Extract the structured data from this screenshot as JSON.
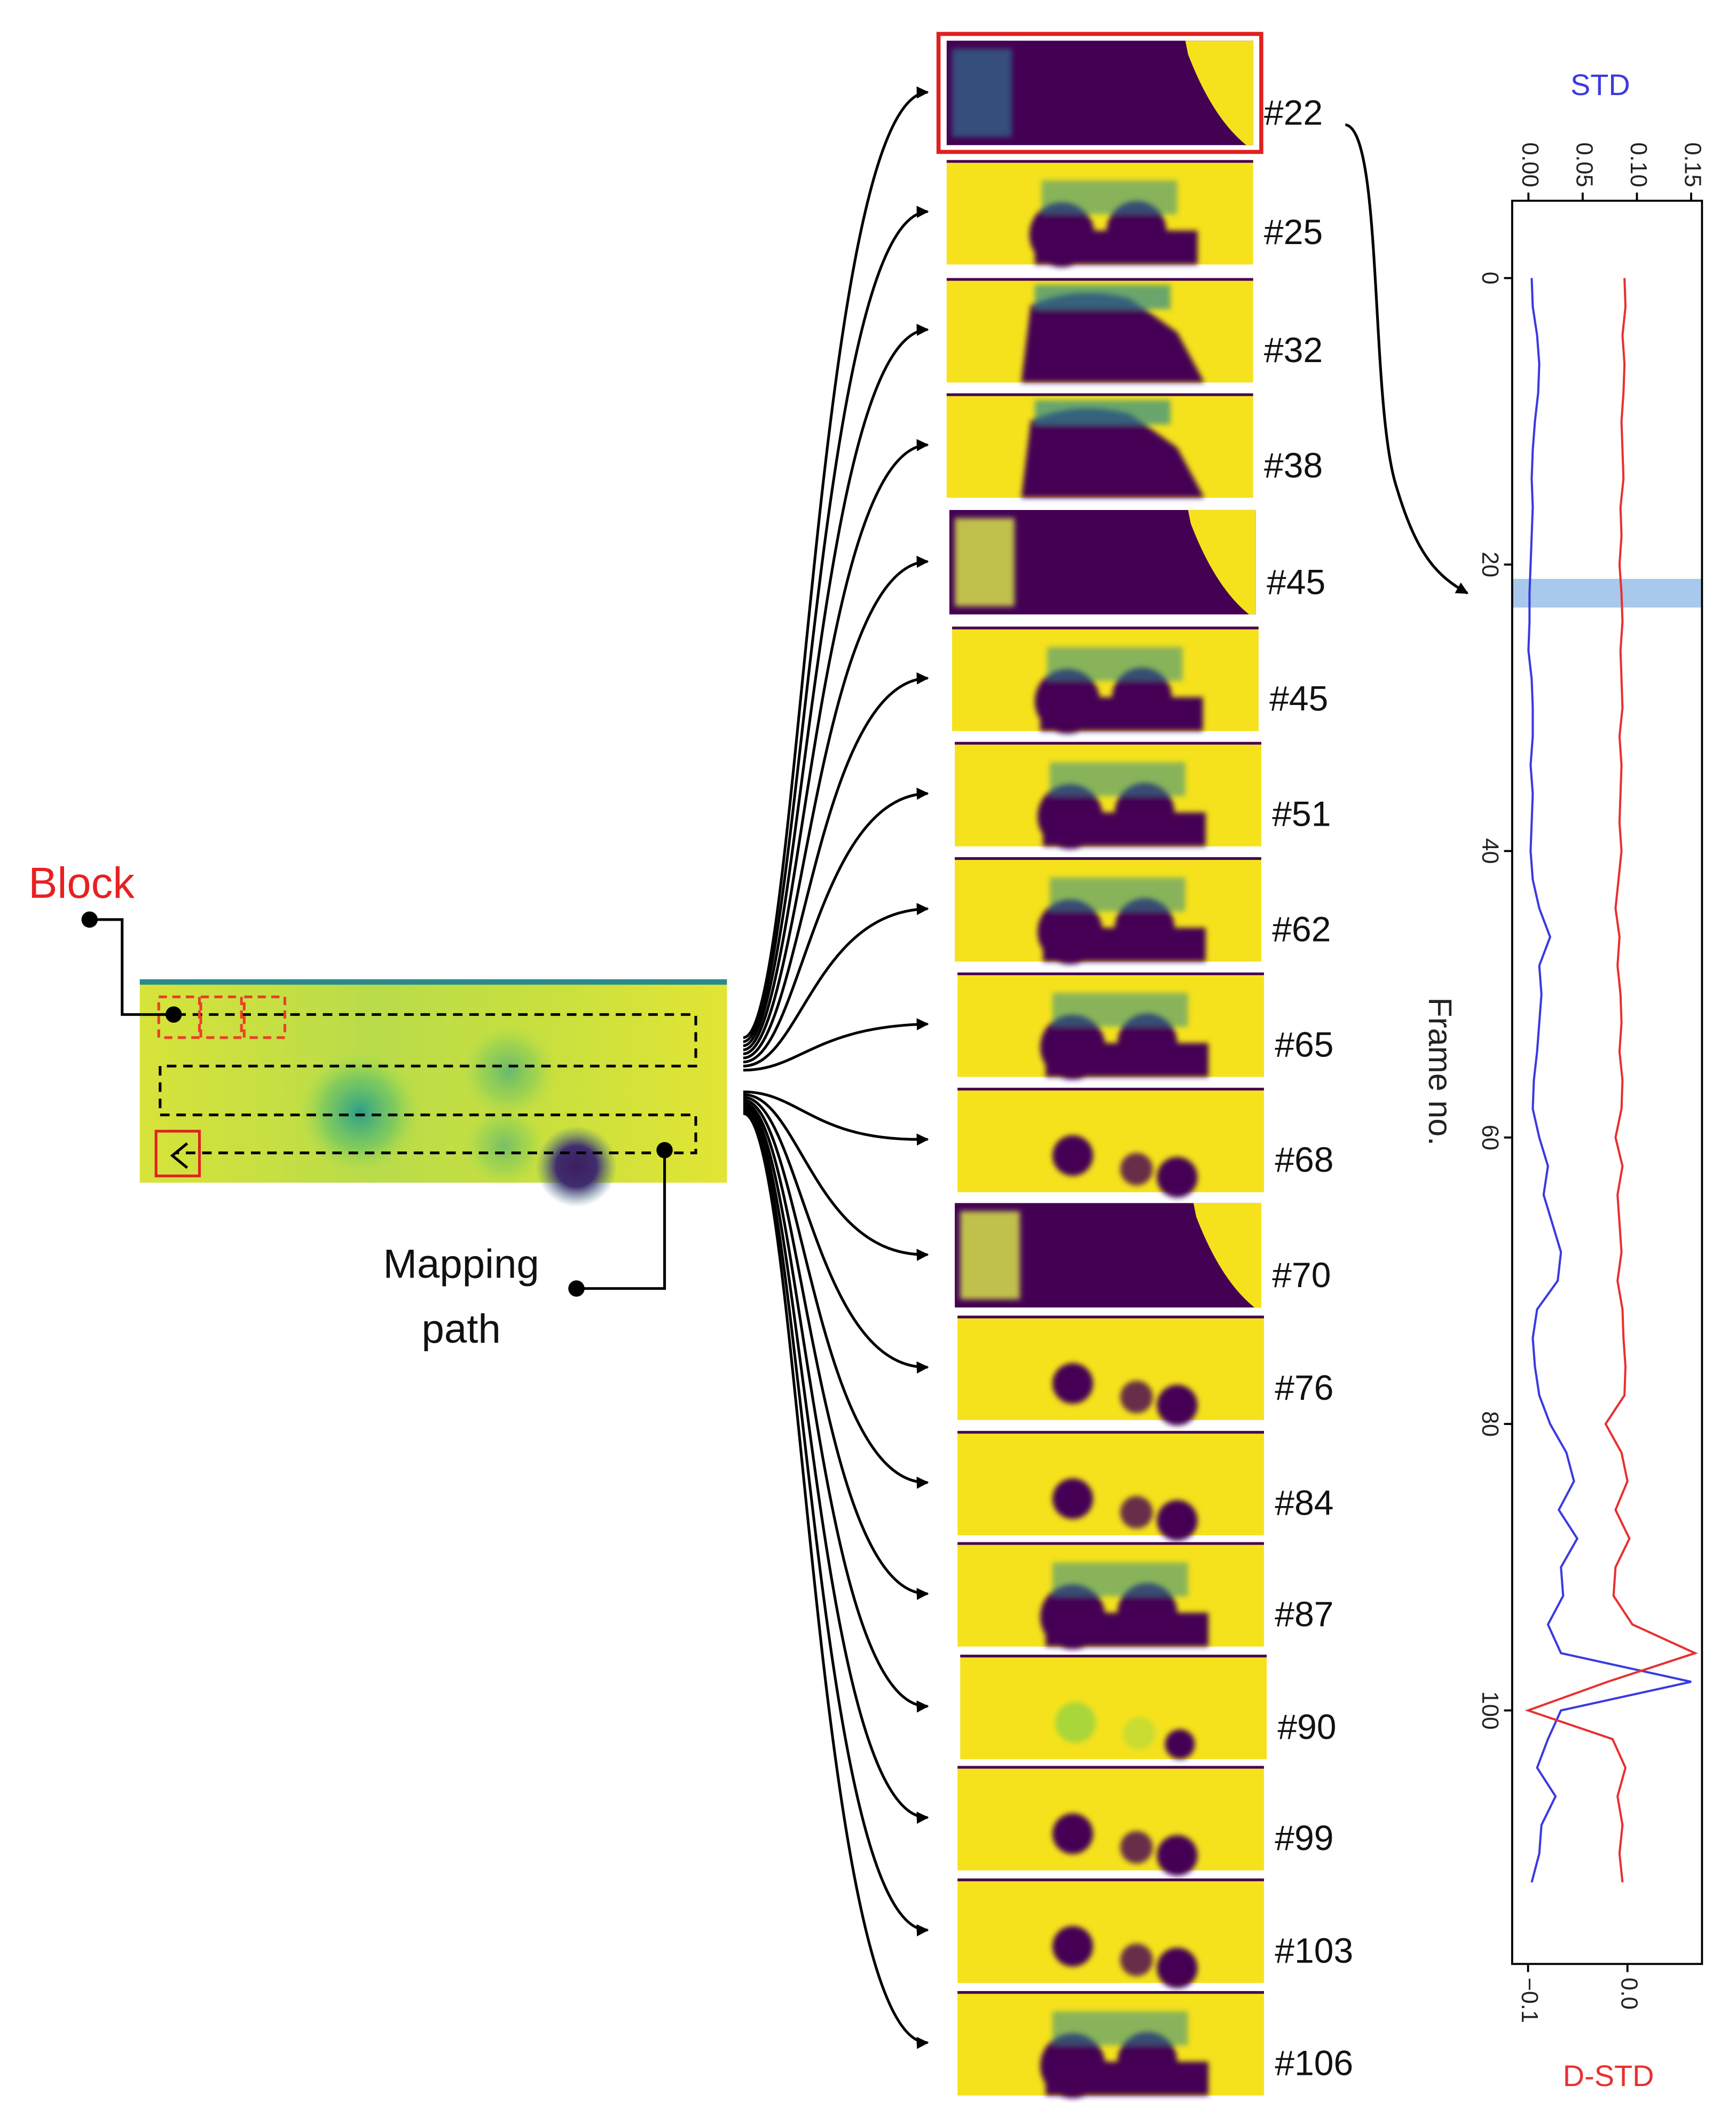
{
  "block_label": "Block",
  "mapping_label": [
    "Mapping",
    "path"
  ],
  "frames": [
    "#22",
    "#25",
    "#32",
    "#38",
    "#45",
    "#45",
    "#51",
    "#62",
    "#65",
    "#68",
    "#70",
    "#76",
    "#84",
    "#87",
    "#90",
    "#99",
    "#103",
    "#106"
  ],
  "chart_data": {
    "type": "line",
    "orientation": "vertical",
    "xlabel": "Frame no.",
    "ylabel": "STD",
    "y2label": "D-STD",
    "x": [
      0,
      2,
      4,
      6,
      8,
      10,
      12,
      14,
      16,
      18,
      20,
      22,
      24,
      26,
      28,
      30,
      32,
      34,
      36,
      38,
      40,
      42,
      44,
      46,
      48,
      50,
      52,
      54,
      56,
      58,
      60,
      62,
      64,
      66,
      68,
      70,
      72,
      74,
      76,
      78,
      80,
      82,
      84,
      86,
      88,
      90,
      92,
      94,
      96,
      98,
      100,
      102,
      104,
      106,
      108,
      110,
      112
    ],
    "xlim": [
      -5.4,
      117.7
    ],
    "xticks": [
      0,
      20,
      40,
      60,
      80,
      100
    ],
    "ylim": [
      -0.015,
      0.16
    ],
    "yticks": [
      {
        "value": 0,
        "label": "0.00"
      },
      {
        "value": 0.05,
        "label": "0.05"
      },
      {
        "value": 0.1,
        "label": "0.10"
      },
      {
        "value": 0.15,
        "label": "0.15"
      }
    ],
    "y2lim": [
      -0.116,
      0.075
    ],
    "y2ticks": [
      {
        "value": -0.1,
        "label": "−0.1"
      },
      {
        "value": 0,
        "label": "0.0"
      }
    ],
    "highlight_frame": 22,
    "highlight_color": "#a8c8ec",
    "series": [
      {
        "name": "STD",
        "color": "#3a3ae0",
        "values": [
          0.003,
          0.004,
          0.008,
          0.01,
          0.009,
          0.006,
          0.004,
          0.003,
          0.004,
          0.003,
          0.002,
          0.001,
          0.001,
          0.0,
          0.003,
          0.004,
          0.004,
          0.002,
          0.004,
          0.003,
          0.002,
          0.004,
          0.01,
          0.02,
          0.01,
          0.012,
          0.01,
          0.008,
          0.005,
          0.004,
          0.01,
          0.018,
          0.014,
          0.022,
          0.03,
          0.027,
          0.008,
          0.004,
          0.006,
          0.01,
          0.02,
          0.035,
          0.042,
          0.028,
          0.045,
          0.03,
          0.032,
          0.018,
          0.03,
          0.15,
          0.03,
          0.018,
          0.008,
          0.025,
          0.012,
          0.01,
          0.003
        ]
      },
      {
        "name": "D-STD",
        "color": "#e83030",
        "axis": "y2",
        "values": [
          -0.003,
          -0.002,
          -0.005,
          -0.003,
          -0.004,
          -0.006,
          -0.005,
          -0.004,
          -0.007,
          -0.006,
          -0.008,
          -0.006,
          -0.005,
          -0.007,
          -0.006,
          -0.005,
          -0.008,
          -0.006,
          -0.007,
          -0.008,
          -0.006,
          -0.009,
          -0.012,
          -0.008,
          -0.01,
          -0.007,
          -0.006,
          -0.008,
          -0.005,
          -0.006,
          -0.012,
          -0.005,
          -0.01,
          -0.008,
          -0.006,
          -0.01,
          -0.005,
          -0.004,
          -0.002,
          -0.003,
          -0.022,
          -0.006,
          0.0,
          -0.012,
          0.002,
          -0.012,
          -0.014,
          0.005,
          0.068,
          -0.02,
          -0.1,
          -0.015,
          -0.002,
          -0.01,
          -0.005,
          -0.008,
          -0.005
        ]
      }
    ]
  }
}
